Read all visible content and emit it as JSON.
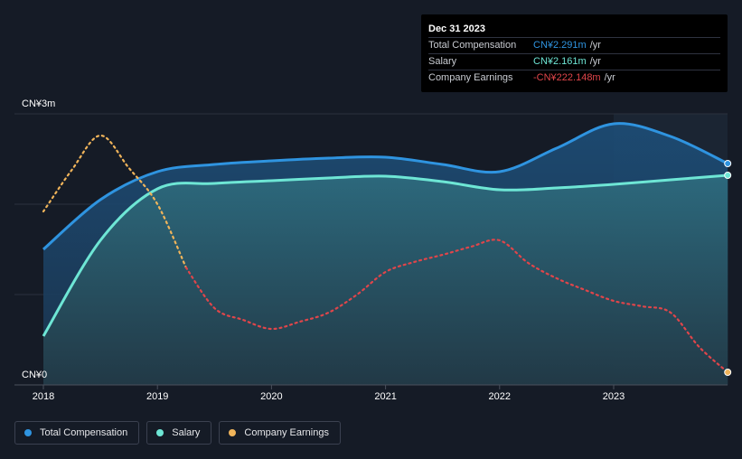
{
  "chart_data": {
    "type": "area",
    "title": "",
    "y_unit_prefix": "CN¥",
    "ylim": [
      0,
      3
    ],
    "y_axis_labels": [
      "CN¥3m",
      "CN¥0"
    ],
    "x_ticks": [
      "2018",
      "2019",
      "2020",
      "2021",
      "2022",
      "2023"
    ],
    "series": [
      {
        "name": "Total Compensation",
        "color": "#2f94e0",
        "x": [
          2018.0,
          2018.5,
          2019.0,
          2019.5,
          2020.0,
          2020.5,
          2021.0,
          2021.5,
          2022.0,
          2022.5,
          2023.0,
          2023.5,
          2024.0
        ],
        "values": [
          1.5,
          2.05,
          2.36,
          2.44,
          2.48,
          2.51,
          2.52,
          2.44,
          2.36,
          2.62,
          2.89,
          2.75,
          2.45
        ]
      },
      {
        "name": "Salary",
        "color": "#6ee6d5",
        "x": [
          2018.0,
          2018.5,
          2019.0,
          2019.5,
          2020.0,
          2020.5,
          2021.0,
          2021.5,
          2022.0,
          2022.5,
          2023.0,
          2023.5,
          2024.0
        ],
        "values": [
          0.54,
          1.6,
          2.17,
          2.23,
          2.26,
          2.29,
          2.31,
          2.25,
          2.16,
          2.18,
          2.22,
          2.27,
          2.32
        ]
      },
      {
        "name": "Company Earnings",
        "color": "#f0b45a",
        "negative_color": "#e0454a",
        "x": [
          2018.0,
          2018.25,
          2018.5,
          2018.75,
          2019.0,
          2019.25,
          2019.5,
          2019.75,
          2020.0,
          2020.25,
          2020.5,
          2020.75,
          2021.0,
          2021.25,
          2021.5,
          2021.75,
          2022.0,
          2022.25,
          2022.5,
          2022.75,
          2023.0,
          2023.25,
          2023.5,
          2023.75,
          2024.0
        ],
        "values": [
          1.92,
          2.38,
          2.76,
          2.4,
          2.0,
          1.3,
          0.85,
          0.72,
          0.62,
          0.7,
          0.8,
          1.0,
          1.25,
          1.36,
          1.44,
          1.53,
          1.6,
          1.35,
          1.18,
          1.05,
          0.93,
          0.87,
          0.8,
          0.42,
          0.14
        ]
      }
    ]
  },
  "tooltip": {
    "date": "Dec 31 2023",
    "rows": [
      {
        "label": "Total Compensation",
        "value": "CN¥2.291m",
        "unit": "/yr",
        "color": "#2f94e0"
      },
      {
        "label": "Salary",
        "value": "CN¥2.161m",
        "unit": "/yr",
        "color": "#6ee6d5"
      },
      {
        "label": "Company Earnings",
        "value": "-CN¥222.148m",
        "unit": "/yr",
        "color": "#e0454a"
      }
    ]
  },
  "legend": [
    {
      "label": "Total Compensation",
      "color": "#2f94e0"
    },
    {
      "label": "Salary",
      "color": "#6ee6d5"
    },
    {
      "label": "Company Earnings",
      "color": "#f0b45a"
    }
  ]
}
